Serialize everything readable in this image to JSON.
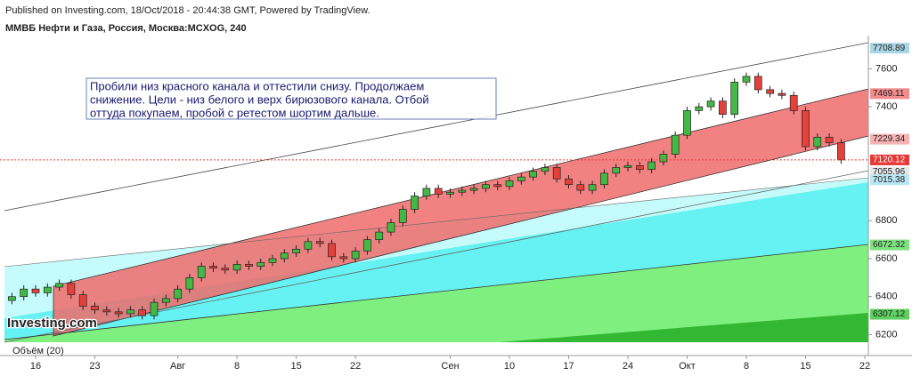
{
  "chart_data": {
    "type": "candlestick",
    "header": "Published on Investing.com, 18/Oct/2018 - 20:44:38 GMT, Powered by TradingView.",
    "title": "ММВБ Нефти и Газа, Россия, Москва:MCXOG, 240",
    "annotation": [
      "Пробили низ красного канала и оттестили снизу. Продолжаем",
      "снижение. Цели - низ белого и верх бирюзового канала. Отбой",
      "оттуда покупаем, пробой с ретестом шортим дальше."
    ],
    "volume_label": "Объём (20)",
    "logo": "Investing.com",
    "categories": [
      null,
      null,
      "16",
      null,
      null,
      null,
      null,
      "23",
      null,
      null,
      null,
      null,
      null,
      null,
      "Авг",
      null,
      null,
      null,
      null,
      "8",
      null,
      null,
      null,
      null,
      "15",
      null,
      null,
      null,
      null,
      "22",
      null,
      null,
      null,
      null,
      null,
      null,
      null,
      "Сен",
      null,
      null,
      null,
      null,
      "10",
      null,
      null,
      null,
      null,
      "17",
      null,
      null,
      null,
      null,
      "24",
      null,
      null,
      null,
      null,
      "Окт",
      null,
      null,
      null,
      null,
      "8",
      null,
      null,
      null,
      null,
      "15",
      null,
      null,
      null,
      null,
      "22"
    ],
    "open": [
      6380,
      6400,
      6440,
      6420,
      6450,
      6470,
      6410,
      6350,
      6330,
      6320,
      6310,
      6330,
      6300,
      6370,
      6390,
      6440,
      6500,
      6560,
      6550,
      6540,
      6570,
      6560,
      6580,
      6600,
      6630,
      6650,
      6690,
      6680,
      6610,
      6600,
      6640,
      6700,
      6740,
      6790,
      6860,
      6930,
      6970,
      6940,
      6950,
      6960,
      6970,
      6990,
      6980,
      7010,
      7030,
      7060,
      7080,
      7020,
      6990,
      6960,
      6990,
      7050,
      7080,
      7090,
      7070,
      7110,
      7150,
      7250,
      7380,
      7400,
      7430,
      7360,
      7530,
      7560,
      7490,
      7470,
      7460,
      7380,
      7190,
      7240,
      7210,
      null,
      null
    ],
    "high": [
      6420,
      6460,
      6460,
      6470,
      6490,
      6490,
      6430,
      6370,
      6350,
      6340,
      6350,
      6350,
      6390,
      6410,
      6460,
      6520,
      6580,
      6580,
      6570,
      6590,
      6590,
      6600,
      6620,
      6650,
      6670,
      6710,
      6710,
      6700,
      6630,
      6660,
      6720,
      6760,
      6810,
      6880,
      6950,
      6990,
      6990,
      6970,
      6980,
      6990,
      7010,
      7010,
      7030,
      7050,
      7080,
      7100,
      7100,
      7040,
      7010,
      7010,
      7070,
      7100,
      7110,
      7110,
      7130,
      7170,
      7270,
      7400,
      7420,
      7450,
      7450,
      7550,
      7580,
      7580,
      7510,
      7490,
      7480,
      7400,
      7260,
      7260,
      7230,
      null,
      null
    ],
    "low": [
      6360,
      6380,
      6400,
      6400,
      6430,
      6390,
      6330,
      6310,
      6300,
      6290,
      6290,
      6280,
      6280,
      6350,
      6370,
      6420,
      6480,
      6530,
      6520,
      6520,
      6540,
      6540,
      6560,
      6580,
      6610,
      6630,
      6660,
      6590,
      6580,
      6580,
      6620,
      6680,
      6720,
      6770,
      6840,
      6910,
      6920,
      6920,
      6930,
      6940,
      6950,
      6960,
      6960,
      6990,
      7010,
      7040,
      7000,
      6970,
      6940,
      6940,
      6970,
      7030,
      7060,
      7050,
      7050,
      7090,
      7130,
      7230,
      7360,
      7380,
      7340,
      7340,
      7510,
      7470,
      7450,
      7440,
      7360,
      7170,
      7170,
      7190,
      7100,
      null,
      null
    ],
    "close": [
      6400,
      6440,
      6420,
      6450,
      6470,
      6410,
      6350,
      6330,
      6320,
      6310,
      6330,
      6300,
      6370,
      6390,
      6440,
      6500,
      6560,
      6550,
      6540,
      6570,
      6560,
      6580,
      6600,
      6630,
      6650,
      6690,
      6680,
      6610,
      6600,
      6640,
      6700,
      6740,
      6790,
      6860,
      6930,
      6970,
      6940,
      6950,
      6960,
      6970,
      6990,
      6980,
      7010,
      7030,
      7060,
      7080,
      7020,
      6990,
      6960,
      6990,
      7050,
      7080,
      7090,
      7070,
      7110,
      7150,
      7250,
      7380,
      7400,
      7430,
      7360,
      7530,
      7560,
      7490,
      7470,
      7460,
      7380,
      7190,
      7240,
      7210,
      7120,
      null,
      null
    ],
    "up_color": "#43b843",
    "down_color": "#e5413b",
    "ylim": [
      6160,
      7775
    ],
    "yticks": [
      6200,
      6400,
      6600,
      6800,
      7400,
      7600
    ],
    "price_labels": [
      {
        "value": 7708.89,
        "color": "#a9d6e5"
      },
      {
        "value": 7469.11,
        "color": "#f28b8b"
      },
      {
        "value": 7229.34,
        "color": "#f7b3b3"
      },
      {
        "value": 7120.12,
        "color": "#e53935",
        "line": true
      },
      {
        "value": 7055.96,
        "color": "#e8e8e8"
      },
      {
        "value": 7015.38,
        "color": "#b9e6f2"
      },
      {
        "value": 6672.32,
        "color": "#7ee37e"
      },
      {
        "value": 6307.12,
        "color": "#5fcf5f"
      }
    ]
  }
}
